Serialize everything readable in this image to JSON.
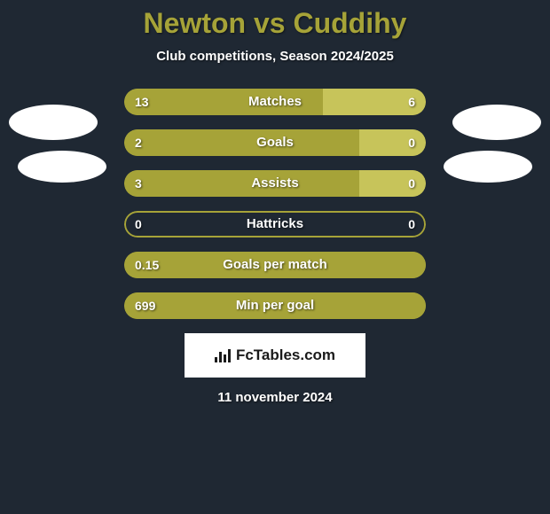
{
  "background_color": "#1f2833",
  "accent_color": "#a6a338",
  "title_color": "#a6a338",
  "right_fill_color": "#c7c45a",
  "title": "Newton vs Cuddihy",
  "subtitle": "Club competitions, Season 2024/2025",
  "branding": "FcTables.com",
  "date": "11 november 2024",
  "rows": [
    {
      "label": "Matches",
      "left": "13",
      "right": "6",
      "left_pct": 66,
      "right_pct": 34
    },
    {
      "label": "Goals",
      "left": "2",
      "right": "0",
      "left_pct": 78,
      "right_pct": 22
    },
    {
      "label": "Assists",
      "left": "3",
      "right": "0",
      "left_pct": 78,
      "right_pct": 22
    },
    {
      "label": "Hattricks",
      "left": "0",
      "right": "0",
      "left_pct": 0,
      "right_pct": 0
    },
    {
      "label": "Goals per match",
      "left": "0.15",
      "right": "",
      "left_pct": 100,
      "right_pct": 0
    },
    {
      "label": "Min per goal",
      "left": "699",
      "right": "",
      "left_pct": 100,
      "right_pct": 0
    }
  ]
}
